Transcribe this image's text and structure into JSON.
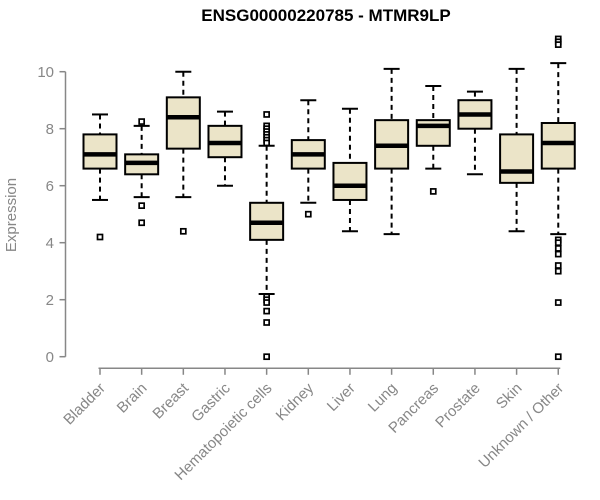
{
  "chart_data": {
    "type": "boxplot",
    "title": "ENSG00000220785 - MTMR9LP",
    "ylabel": "Expression",
    "xlabel": "",
    "ylim": [
      0,
      10
    ],
    "yticks": [
      0,
      2,
      4,
      6,
      8,
      10
    ],
    "grid": false,
    "legend": false,
    "colors": {
      "box_fill": "#ebe4c8",
      "box_stroke": "#000000",
      "whisker": "#000000",
      "axis": "#878787",
      "tick_label": "#878787",
      "title": "#000000",
      "background": "#ffffff"
    },
    "categories": [
      "Bladder",
      "Brain",
      "Breast",
      "Gastric",
      "Hematopoietic cells",
      "Kidney",
      "Liver",
      "Lung",
      "Pancreas",
      "Prostate",
      "Skin",
      "Unknown / Other"
    ],
    "series": [
      {
        "name": "Bladder",
        "whisker_low": 5.5,
        "q1": 6.6,
        "median": 7.1,
        "q3": 7.8,
        "whisker_high": 8.5,
        "outliers": [
          4.2
        ]
      },
      {
        "name": "Brain",
        "whisker_low": 5.6,
        "q1": 6.4,
        "median": 6.8,
        "q3": 7.1,
        "whisker_high": 8.1,
        "outliers": [
          8.25,
          5.3,
          4.7
        ]
      },
      {
        "name": "Breast",
        "whisker_low": 5.6,
        "q1": 7.3,
        "median": 8.4,
        "q3": 9.1,
        "whisker_high": 10.0,
        "outliers": [
          4.4
        ]
      },
      {
        "name": "Gastric",
        "whisker_low": 6.0,
        "q1": 7.0,
        "median": 7.5,
        "q3": 8.1,
        "whisker_high": 8.6,
        "outliers": []
      },
      {
        "name": "Hematopoietic cells",
        "whisker_low": 2.2,
        "q1": 4.1,
        "median": 4.7,
        "q3": 5.4,
        "whisker_high": 7.4,
        "outliers": [
          8.5,
          8.1,
          8.0,
          7.9,
          7.8,
          7.7,
          7.6,
          7.5,
          2.1,
          2.0,
          1.9,
          1.6,
          1.2,
          0.0
        ]
      },
      {
        "name": "Kidney",
        "whisker_low": 5.4,
        "q1": 6.6,
        "median": 7.1,
        "q3": 7.6,
        "whisker_high": 9.0,
        "outliers": [
          5.0
        ]
      },
      {
        "name": "Liver",
        "whisker_low": 4.4,
        "q1": 5.5,
        "median": 6.0,
        "q3": 6.8,
        "whisker_high": 8.7,
        "outliers": []
      },
      {
        "name": "Lung",
        "whisker_low": 4.3,
        "q1": 6.6,
        "median": 7.4,
        "q3": 8.3,
        "whisker_high": 10.1,
        "outliers": []
      },
      {
        "name": "Pancreas",
        "whisker_low": 6.6,
        "q1": 7.4,
        "median": 8.1,
        "q3": 8.3,
        "whisker_high": 9.5,
        "outliers": [
          5.8
        ]
      },
      {
        "name": "Prostate",
        "whisker_low": 6.4,
        "q1": 8.0,
        "median": 8.5,
        "q3": 9.0,
        "whisker_high": 9.3,
        "outliers": []
      },
      {
        "name": "Skin",
        "whisker_low": 4.4,
        "q1": 6.1,
        "median": 6.5,
        "q3": 7.8,
        "whisker_high": 10.1,
        "outliers": []
      },
      {
        "name": "Unknown / Other",
        "whisker_low": 4.3,
        "q1": 6.6,
        "median": 7.5,
        "q3": 8.2,
        "whisker_high": 10.3,
        "outliers": [
          11.15,
          11.05,
          10.95,
          4.1,
          4.0,
          3.8,
          3.6,
          3.2,
          3.0,
          1.9,
          0.0
        ]
      }
    ]
  }
}
